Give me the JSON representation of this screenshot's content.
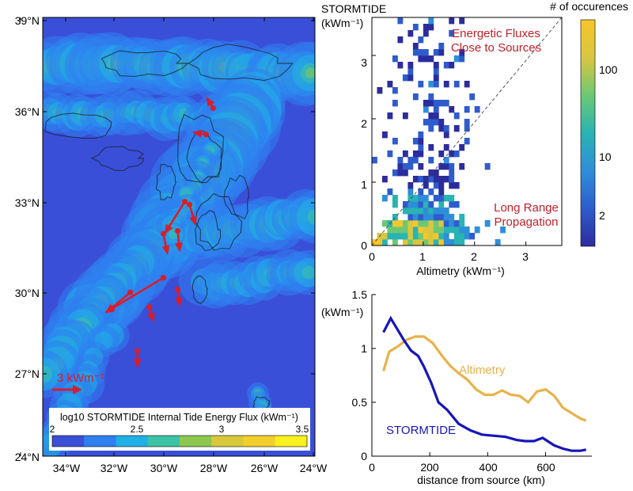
{
  "colors": {
    "map_background": "#3a4fd8",
    "flux_ramp": [
      "#3a4fd8",
      "#2f7ff0",
      "#1fb0e6",
      "#3cc2a4",
      "#8cc850",
      "#d8c83a",
      "#f2cf2a",
      "#f9f01e"
    ],
    "arrow": "#d61f2c",
    "annotation_text": "#c0202a",
    "stormtide_line": "#1616b8",
    "altimetry_line": "#e8b24a",
    "hist_ramp": [
      "#2c2c9c",
      "#2e5ccc",
      "#2f8ed9",
      "#29b3b3",
      "#6cc874",
      "#d9c640",
      "#f7c62a"
    ]
  },
  "map": {
    "lat_labels": [
      "39°N",
      "36°N",
      "33°N",
      "30°N",
      "27°N",
      "24°N"
    ],
    "lon_labels": [
      "34°W",
      "32°W",
      "30°W",
      "28°W",
      "26°W",
      "24°W"
    ],
    "scale_arrow_label": "3 kWm⁻¹",
    "colorbar_title": "log10 STORMTIDE Internal Tide Energy Flux (kWm⁻¹)",
    "colorbar_ticks": [
      "2",
      "2.5",
      "3",
      "3.5"
    ]
  },
  "scatter": {
    "ylabel_line1": "STORMTIDE",
    "ylabel_line2": "(kWm⁻¹)",
    "xlabel": "Altimetry (kWm⁻¹)",
    "x_ticks": [
      "0",
      "1",
      "2",
      "3"
    ],
    "y_ticks": [
      "0",
      "1",
      "2",
      "3"
    ],
    "annotation_top_line1": "Energetic Fluxes",
    "annotation_top_line2": "Close to Sources",
    "annotation_bottom_line1": "Long Range",
    "annotation_bottom_line2": "Propagation",
    "colorbar_title": "# of occurences",
    "colorbar_ticks": [
      "100",
      "10",
      "2"
    ]
  },
  "line_plot": {
    "ylabel": "(kWm⁻¹)",
    "xlabel": "distance from source (km)",
    "x_ticks": [
      "0",
      "200",
      "400",
      "600"
    ],
    "y_ticks": [
      "0",
      "0.5",
      "1",
      "1.5"
    ],
    "label_altimetry": "Altimetry",
    "label_stormtide": "STORMTIDE"
  },
  "chart_data": [
    {
      "type": "heatmap",
      "panel": "map",
      "xlim": [
        -35.5,
        -24
      ],
      "ylim": [
        24,
        39
      ],
      "xlabel": "",
      "ylabel": "",
      "colorbar_title": "log10 STORMTIDE Internal Tide Energy Flux (kWm⁻¹)",
      "colorbar_range": [
        2,
        3.5
      ],
      "grid": false,
      "arrows": [
        {
          "lon": -29.5,
          "lat": 32.7,
          "u": -1.0,
          "v": -1.6
        },
        {
          "lon": -29.3,
          "lat": 32.6,
          "u": 0.3,
          "v": -1.0
        },
        {
          "lon": -30.4,
          "lat": 31.6,
          "u": 0.2,
          "v": -1.0
        },
        {
          "lon": -29.8,
          "lat": 31.7,
          "u": 0.1,
          "v": -1.0
        },
        {
          "lon": -30.4,
          "lat": 30.1,
          "u": -3.0,
          "v": -1.8
        },
        {
          "lon": -31.8,
          "lat": 29.6,
          "u": -1.2,
          "v": -1.0
        },
        {
          "lon": -31.0,
          "lat": 29.1,
          "u": 0.2,
          "v": -0.7
        },
        {
          "lon": -29.8,
          "lat": 29.7,
          "u": 0.1,
          "v": -0.8
        },
        {
          "lon": -31.5,
          "lat": 27.6,
          "u": 0.0,
          "v": -0.8
        },
        {
          "lon": -28.3,
          "lat": 35.9,
          "u": -0.3,
          "v": 0.5
        },
        {
          "lon": -28.6,
          "lat": 35.0,
          "u": -0.6,
          "v": 0.1
        }
      ]
    },
    {
      "type": "heatmap",
      "panel": "scatter",
      "title": "",
      "xlabel": "Altimetry (kWm⁻¹)",
      "ylabel": "STORMTIDE (kWm⁻¹)",
      "xlim": [
        0,
        3.7
      ],
      "ylim": [
        0,
        3.6
      ],
      "colorbar_title": "# of occurences",
      "colorbar_scale": "log",
      "colorbar_range": [
        1.5,
        300
      ],
      "one_to_one_line": true,
      "grid": false
    },
    {
      "type": "line",
      "panel": "distance",
      "title": "",
      "xlabel": "distance from source (km)",
      "ylabel": "(kWm⁻¹)",
      "xlim": [
        0,
        760
      ],
      "ylim": [
        0,
        1.5
      ],
      "legend": "inline labels",
      "grid": false,
      "series": [
        {
          "name": "Altimetry",
          "x": [
            40,
            60,
            90,
            120,
            150,
            180,
            210,
            240,
            270,
            300,
            330,
            360,
            390,
            420,
            450,
            480,
            510,
            540,
            570,
            600,
            630,
            660,
            690,
            720,
            740
          ],
          "y": [
            0.79,
            0.97,
            1.02,
            1.08,
            1.11,
            1.11,
            1.05,
            0.94,
            0.84,
            0.77,
            0.71,
            0.62,
            0.57,
            0.57,
            0.61,
            0.57,
            0.56,
            0.5,
            0.6,
            0.62,
            0.56,
            0.45,
            0.4,
            0.35,
            0.33
          ]
        },
        {
          "name": "STORMTIDE",
          "x": [
            40,
            65,
            90,
            110,
            135,
            160,
            180,
            205,
            230,
            260,
            300,
            340,
            380,
            420,
            460,
            500,
            530,
            560,
            590,
            630,
            660,
            690,
            720,
            740
          ],
          "y": [
            1.15,
            1.28,
            1.17,
            1.08,
            0.98,
            0.93,
            0.83,
            0.68,
            0.5,
            0.43,
            0.3,
            0.24,
            0.2,
            0.19,
            0.18,
            0.15,
            0.14,
            0.14,
            0.17,
            0.1,
            0.07,
            0.05,
            0.05,
            0.06
          ]
        }
      ]
    }
  ]
}
